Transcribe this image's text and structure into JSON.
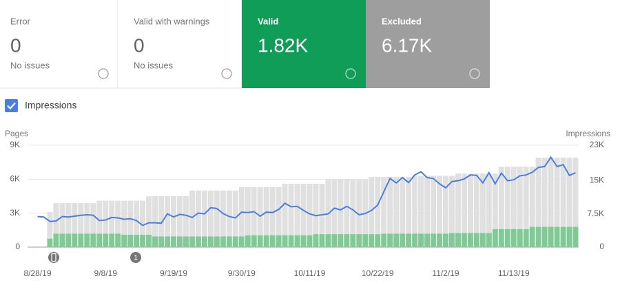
{
  "cards": [
    {
      "label": "Error",
      "value": "0",
      "note": "No issues"
    },
    {
      "label": "Valid with warnings",
      "value": "0",
      "note": "No issues"
    },
    {
      "label": "Valid",
      "value": "1.82K"
    },
    {
      "label": "Excluded",
      "value": "6.17K"
    }
  ],
  "checkbox_label": "Impressions",
  "chart_data": {
    "type": "bar",
    "stacked": true,
    "y_label": "Pages",
    "y2_label": "Impressions",
    "categories": [
      "8/28/19",
      null,
      null,
      null,
      null,
      null,
      null,
      null,
      null,
      null,
      null,
      "9/8/19",
      null,
      null,
      null,
      null,
      null,
      null,
      null,
      null,
      null,
      null,
      "9/19/19",
      null,
      null,
      null,
      null,
      null,
      null,
      null,
      null,
      null,
      null,
      "9/30/19",
      null,
      null,
      null,
      null,
      null,
      null,
      null,
      null,
      null,
      null,
      "10/11/19",
      null,
      null,
      null,
      null,
      null,
      null,
      null,
      null,
      null,
      null,
      "10/22/19",
      null,
      null,
      null,
      null,
      null,
      null,
      null,
      null,
      null,
      null,
      "11/2/19",
      null,
      null,
      null,
      null,
      null,
      null,
      null,
      null,
      null,
      null,
      "11/13/19",
      null,
      null,
      null,
      null,
      null,
      null,
      null,
      null,
      null,
      null
    ],
    "series": [
      {
        "name": "Valid",
        "color": "#81c995",
        "values": [
          null,
          null,
          750,
          1200,
          1200,
          1200,
          1200,
          1200,
          1200,
          1200,
          1200,
          1200,
          1200,
          1200,
          1100,
          1100,
          1100,
          1100,
          1100,
          950,
          950,
          950,
          950,
          950,
          950,
          950,
          950,
          950,
          950,
          950,
          950,
          950,
          950,
          950,
          1050,
          1050,
          1050,
          1050,
          1050,
          1050,
          1050,
          1050,
          1050,
          1050,
          1050,
          1150,
          1150,
          1150,
          1150,
          1150,
          1150,
          1150,
          1150,
          1150,
          1150,
          1150,
          1200,
          1200,
          1200,
          1200,
          1200,
          1200,
          1200,
          1200,
          1200,
          1200,
          1200,
          1250,
          1250,
          1250,
          1250,
          1250,
          1250,
          1250,
          1600,
          1600,
          1600,
          1600,
          1600,
          1600,
          1800,
          1800,
          1800,
          1800,
          1800,
          1800,
          1800,
          1800
        ]
      },
      {
        "name": "Excluded",
        "color": "#e0e0e0",
        "values": [
          null,
          null,
          2350,
          2700,
          2700,
          2700,
          2700,
          2700,
          2700,
          2700,
          2900,
          2900,
          2900,
          2900,
          3000,
          3000,
          3000,
          3000,
          3400,
          3550,
          3550,
          3550,
          3550,
          3550,
          3550,
          4050,
          4050,
          4050,
          4050,
          4050,
          4050,
          4050,
          4050,
          4350,
          4250,
          4250,
          4250,
          4250,
          4250,
          4250,
          4550,
          4550,
          4550,
          4550,
          4550,
          4450,
          4450,
          4850,
          4850,
          4850,
          4850,
          4850,
          4850,
          4850,
          5050,
          5050,
          5000,
          5000,
          5000,
          5000,
          5000,
          5100,
          5100,
          5100,
          5100,
          5100,
          5100,
          5050,
          5250,
          5250,
          5250,
          5250,
          5250,
          5250,
          4900,
          5500,
          5500,
          5500,
          5500,
          5500,
          5300,
          6100,
          6100,
          6100,
          6100,
          6100,
          6100,
          6100
        ]
      },
      {
        "name": "Impressions",
        "type": "line",
        "axis": "y2",
        "color": "#4a7ee0",
        "values": [
          6900,
          6800,
          5800,
          5900,
          6900,
          6800,
          7000,
          7200,
          7300,
          7200,
          6000,
          6100,
          6700,
          6600,
          6300,
          6400,
          6000,
          4900,
          5500,
          5500,
          5400,
          7500,
          6800,
          7400,
          7200,
          6700,
          7700,
          7500,
          8900,
          8700,
          7600,
          6900,
          6600,
          7900,
          7800,
          8000,
          7000,
          7900,
          7800,
          8500,
          9900,
          9100,
          9200,
          8300,
          7500,
          7100,
          7300,
          7500,
          8800,
          8400,
          9200,
          8400,
          7300,
          7600,
          8300,
          9500,
          12500,
          15500,
          14500,
          15700,
          14600,
          16300,
          17000,
          15700,
          15500,
          14300,
          13400,
          14800,
          15000,
          15400,
          16300,
          16200,
          14500,
          16800,
          14300,
          16700,
          15000,
          15200,
          16100,
          16300,
          16900,
          18000,
          18200,
          20300,
          18200,
          18600,
          16200,
          16800
        ]
      }
    ],
    "ylim": [
      0,
      9000
    ],
    "yticks": [
      0,
      {
        "value": 3000,
        "label": "3K"
      },
      {
        "value": 6000,
        "label": "6K"
      },
      {
        "value": 9000,
        "label": "9K"
      }
    ],
    "y2lim": [
      0,
      23000
    ],
    "y2ticks": [
      0,
      {
        "value": 7500,
        "label": "7.5K"
      },
      {
        "value": 15000,
        "label": "15K"
      },
      {
        "value": 23000,
        "label": "23K"
      }
    ],
    "grid": true,
    "annotations": [
      {
        "text": "1"
      }
    ]
  }
}
